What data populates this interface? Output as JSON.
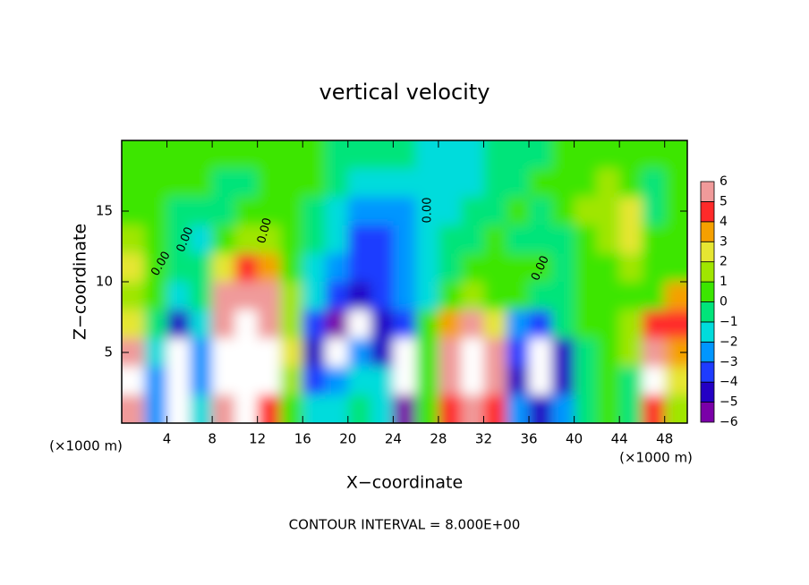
{
  "chart_data": {
    "type": "heatmap",
    "title": "vertical velocity",
    "x_label": "X−coordinate",
    "y_label": "Z−coordinate",
    "x_unit": "(×1000 m)",
    "y_unit": "(×1000 m)",
    "footer": "CONTOUR INTERVAL = 8.000E+00",
    "contour_labels": [
      "0.00",
      "0.00",
      "0.00",
      "0.00",
      "0.00"
    ],
    "xlim": [
      0,
      50
    ],
    "ylim": [
      0,
      20
    ],
    "xticks": [
      4,
      8,
      12,
      16,
      20,
      24,
      28,
      32,
      36,
      40,
      44,
      48
    ],
    "yticks": [
      5,
      10,
      15
    ],
    "x": [
      1,
      3,
      5,
      7,
      9,
      11,
      13,
      15,
      17,
      19,
      21,
      23,
      25,
      27,
      29,
      31,
      33,
      35,
      37,
      39,
      41,
      43,
      45,
      47,
      49
    ],
    "y": [
      19,
      17,
      15,
      13,
      11,
      9,
      7,
      5,
      3,
      1
    ],
    "z": [
      [
        0,
        0,
        0,
        0,
        0,
        0,
        0.5,
        0,
        0,
        -1,
        -1,
        -1,
        -1,
        -1.5,
        -2,
        -1.5,
        -1,
        -1,
        -0.5,
        0,
        0,
        0,
        0,
        0.5,
        0
      ],
      [
        0,
        0,
        0.5,
        0,
        -1,
        -0.5,
        0,
        0.5,
        0,
        -1,
        -1.5,
        -2,
        -2,
        -2,
        -2,
        -1.5,
        -1,
        -0.5,
        0,
        0,
        0.5,
        1,
        0.5,
        -1,
        0
      ],
      [
        0.5,
        0,
        -1,
        -1,
        -0.5,
        0,
        0.5,
        0,
        -0.5,
        -1.5,
        -3,
        -3,
        -2.5,
        -2,
        -1.5,
        -1,
        -0.5,
        0,
        -1,
        0,
        1,
        1.5,
        2,
        -1,
        0
      ],
      [
        1,
        0,
        -1,
        -1.5,
        0,
        1,
        1,
        0,
        -1,
        -2,
        -3.5,
        -4,
        -3,
        -2,
        -1,
        -0.5,
        0,
        -0.5,
        -1,
        -0.5,
        0,
        1,
        2.5,
        0,
        0.5
      ],
      [
        2,
        0.5,
        -1,
        -0.5,
        2,
        4,
        3,
        0.5,
        -1.5,
        -3,
        -4,
        -4,
        -3,
        -2,
        -0.5,
        0,
        0.5,
        0,
        0,
        -0.5,
        0,
        0.5,
        1,
        0,
        0
      ],
      [
        1,
        0,
        -2,
        -1,
        5,
        6,
        5,
        1,
        -2,
        -4,
        -5,
        -4,
        -3,
        -2,
        0,
        1,
        0.5,
        0,
        -0.5,
        -1,
        0,
        0.5,
        0.5,
        0.5,
        3
      ],
      [
        2,
        -1,
        -5,
        -2,
        6,
        10,
        6,
        1,
        -4,
        -6,
        -7,
        -5,
        -4,
        0,
        3,
        5,
        2,
        -3,
        -4,
        -1,
        0,
        0,
        1,
        4,
        4
      ],
      [
        5,
        -2,
        -10,
        -3,
        8,
        10,
        8,
        2,
        -5,
        -8,
        -3,
        -5,
        -8,
        0,
        6,
        10,
        6,
        -4,
        -8,
        -5,
        -1,
        0,
        1,
        6,
        3
      ],
      [
        10,
        -3,
        -10,
        -3,
        8,
        10,
        7,
        1,
        -4,
        -3,
        -2,
        -2,
        -10,
        0,
        6,
        10,
        6,
        -5,
        -10,
        -5,
        -1,
        0,
        -1,
        8,
        2
      ],
      [
        6,
        -3,
        -8,
        -2,
        5,
        8,
        4,
        0.5,
        -2,
        -2,
        -1,
        -2,
        -6,
        0,
        4,
        6,
        4,
        -3,
        -5,
        -3,
        -0.5,
        0,
        -1,
        4,
        1
      ]
    ],
    "colorbar": {
      "ticks": [
        6,
        5,
        4,
        3,
        2,
        1,
        0,
        {
          "value": -1,
          "label": "−1"
        },
        {
          "value": -2,
          "label": "−2"
        },
        {
          "value": -3,
          "label": "−3"
        },
        {
          "value": -4,
          "label": "−4"
        },
        {
          "value": -5,
          "label": "−5"
        },
        {
          "value": -6,
          "label": "−6"
        }
      ],
      "lim": [
        -6,
        6
      ],
      "colors": [
        "#7a00a8",
        "#2400c4",
        "#1e3cff",
        "#0096ff",
        "#00dcdc",
        "#00e47a",
        "#3ce600",
        "#a0e600",
        "#e6e632",
        "#f5a000",
        "#ff2a2a",
        "#f09a9a"
      ],
      "out_of_range_color": "#ffffff"
    }
  }
}
